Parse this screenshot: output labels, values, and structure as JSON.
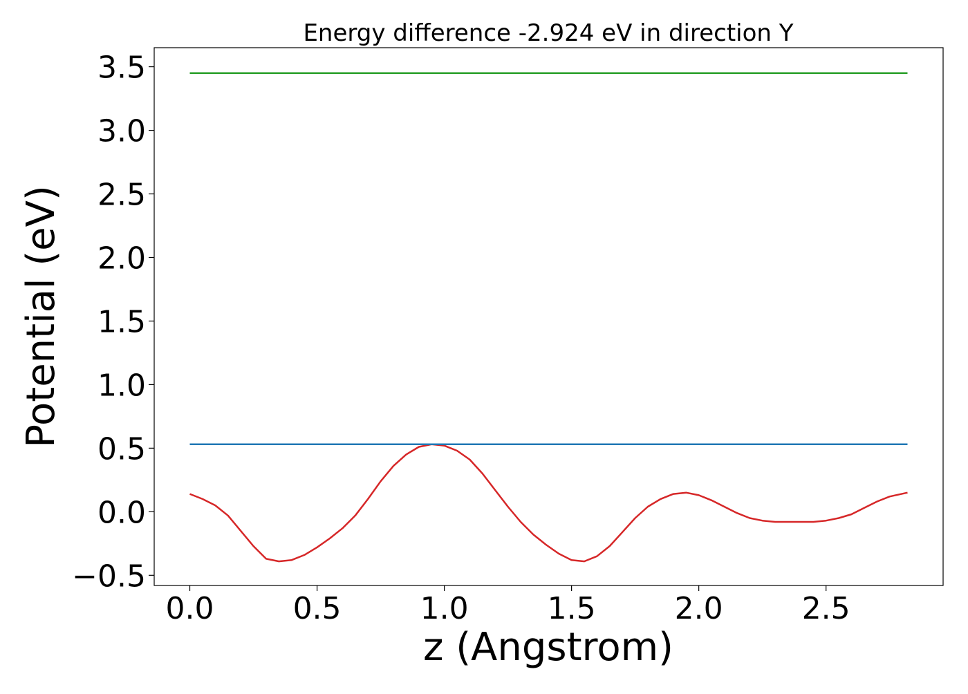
{
  "chart_data": {
    "type": "line",
    "title": "Energy difference -2.924 eV in direction Y",
    "xlabel": "z (Angstrom)",
    "ylabel": "Potential (eV)",
    "xlim": [
      -0.14,
      2.96
    ],
    "ylim": [
      -0.58,
      3.65
    ],
    "xticks": [
      0.0,
      0.5,
      1.0,
      1.5,
      2.0,
      2.5
    ],
    "xtick_labels": [
      "0.0",
      "0.5",
      "1.0",
      "1.5",
      "2.0",
      "2.5"
    ],
    "yticks": [
      -0.5,
      0.0,
      0.5,
      1.0,
      1.5,
      2.0,
      2.5,
      3.0,
      3.5
    ],
    "ytick_labels": [
      "−0.5",
      "0.0",
      "0.5",
      "1.0",
      "1.5",
      "2.0",
      "2.5",
      "3.0",
      "3.5"
    ],
    "grid": false,
    "series": [
      {
        "color": "#d62728",
        "x": [
          0.0,
          0.05,
          0.1,
          0.15,
          0.2,
          0.25,
          0.3,
          0.35,
          0.4,
          0.45,
          0.5,
          0.55,
          0.6,
          0.65,
          0.7,
          0.75,
          0.8,
          0.85,
          0.9,
          0.95,
          1.0,
          1.05,
          1.1,
          1.15,
          1.2,
          1.25,
          1.3,
          1.35,
          1.4,
          1.45,
          1.5,
          1.55,
          1.6,
          1.65,
          1.7,
          1.75,
          1.8,
          1.85,
          1.9,
          1.95,
          2.0,
          2.05,
          2.1,
          2.15,
          2.2,
          2.25,
          2.3,
          2.35,
          2.4,
          2.45,
          2.5,
          2.55,
          2.6,
          2.65,
          2.7,
          2.75,
          2.82
        ],
        "y": [
          0.14,
          0.1,
          0.05,
          -0.03,
          -0.15,
          -0.27,
          -0.37,
          -0.39,
          -0.38,
          -0.34,
          -0.28,
          -0.21,
          -0.13,
          -0.03,
          0.1,
          0.24,
          0.36,
          0.45,
          0.51,
          0.53,
          0.52,
          0.48,
          0.41,
          0.3,
          0.17,
          0.04,
          -0.08,
          -0.18,
          -0.26,
          -0.33,
          -0.38,
          -0.39,
          -0.35,
          -0.27,
          -0.16,
          -0.05,
          0.04,
          0.1,
          0.14,
          0.15,
          0.13,
          0.09,
          0.04,
          -0.01,
          -0.05,
          -0.07,
          -0.08,
          -0.08,
          -0.08,
          -0.08,
          -0.07,
          -0.05,
          -0.02,
          0.03,
          0.08,
          0.12,
          0.15
        ]
      },
      {
        "color": "#1f77b4",
        "x": [
          0.0,
          2.82
        ],
        "y": [
          0.53,
          0.53
        ]
      },
      {
        "color": "#2ca02c",
        "x": [
          0.0,
          2.82
        ],
        "y": [
          3.45,
          3.45
        ]
      }
    ]
  }
}
